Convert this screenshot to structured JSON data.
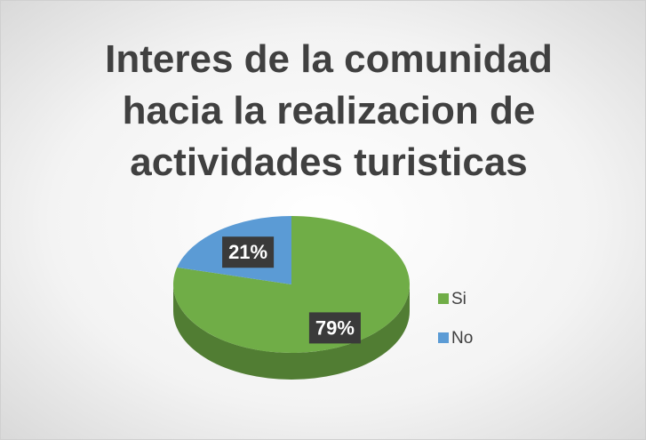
{
  "chart_data": {
    "type": "pie",
    "title": "Interes de la comunidad hacia la realizacion de actividades turisticas",
    "categories": [
      "Si",
      "No"
    ],
    "values": [
      79,
      21
    ],
    "value_labels": [
      "79%",
      "21%"
    ],
    "colors": [
      "#70ad47",
      "#5b9bd5"
    ],
    "legend": "right"
  }
}
